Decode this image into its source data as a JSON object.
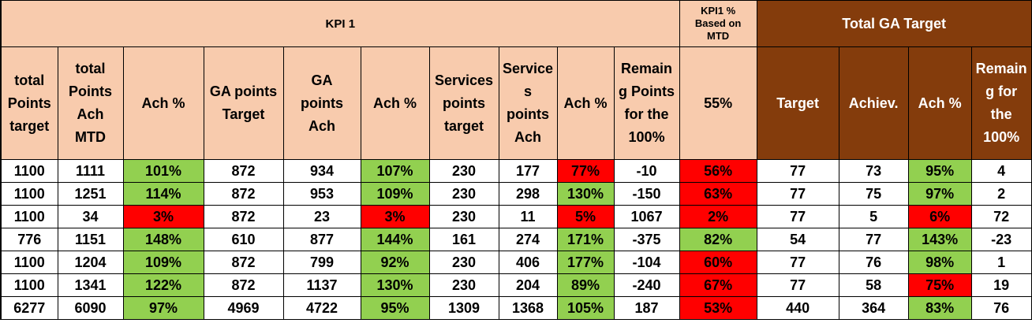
{
  "header": {
    "kpi1": "KPI 1",
    "kpi1_pct_lines": [
      "KPI1 %",
      "Based on",
      "MTD"
    ],
    "total_ga_target": "Total GA Target"
  },
  "columns": [
    {
      "lines": [
        "total",
        "Points",
        "target"
      ]
    },
    {
      "lines": [
        "total",
        "Points",
        "Ach",
        "MTD"
      ]
    },
    {
      "lines": [
        "Ach %"
      ]
    },
    {
      "lines": [
        "GA points",
        "Target"
      ]
    },
    {
      "lines": [
        "GA",
        "points",
        "Ach"
      ]
    },
    {
      "lines": [
        "Ach %"
      ]
    },
    {
      "lines": [
        "Services",
        "points",
        "target"
      ]
    },
    {
      "lines": [
        "Service",
        "s",
        "points",
        "Ach"
      ]
    },
    {
      "lines": [
        "Ach %"
      ]
    },
    {
      "lines": [
        "Remain",
        "g Points",
        "for the",
        "100%"
      ]
    },
    {
      "lines": [
        "55%"
      ]
    },
    {
      "lines": [
        "Target"
      ]
    },
    {
      "lines": [
        "Achiev."
      ]
    },
    {
      "lines": [
        "Ach %"
      ]
    },
    {
      "lines": [
        "Remain",
        "g for",
        "the",
        "100%"
      ]
    }
  ],
  "rows": [
    {
      "cells": [
        "1100",
        "1111",
        "101%",
        "872",
        "934",
        "107%",
        "230",
        "177",
        "77%",
        "-10",
        "56%",
        "77",
        "73",
        "95%",
        "4"
      ],
      "status": [
        "w",
        "w",
        "g",
        "w",
        "w",
        "g",
        "w",
        "w",
        "r",
        "w",
        "r",
        "b",
        "b",
        "g",
        "b"
      ]
    },
    {
      "cells": [
        "1100",
        "1251",
        "114%",
        "872",
        "953",
        "109%",
        "230",
        "298",
        "130%",
        "-150",
        "63%",
        "77",
        "75",
        "97%",
        "2"
      ],
      "status": [
        "w",
        "w",
        "g",
        "w",
        "w",
        "g",
        "w",
        "w",
        "g",
        "w",
        "r",
        "b",
        "b",
        "g",
        "b"
      ]
    },
    {
      "cells": [
        "1100",
        "34",
        "3%",
        "872",
        "23",
        "3%",
        "230",
        "11",
        "5%",
        "1067",
        "2%",
        "77",
        "5",
        "6%",
        "72"
      ],
      "status": [
        "w",
        "w",
        "r",
        "w",
        "w",
        "r",
        "w",
        "w",
        "r",
        "w",
        "r",
        "b",
        "b",
        "r",
        "b"
      ]
    },
    {
      "cells": [
        "776",
        "1151",
        "148%",
        "610",
        "877",
        "144%",
        "161",
        "274",
        "171%",
        "-375",
        "82%",
        "54",
        "77",
        "143%",
        "-23"
      ],
      "status": [
        "w",
        "w",
        "g",
        "w",
        "w",
        "g",
        "w",
        "w",
        "g",
        "w",
        "g",
        "b",
        "b",
        "g",
        "b"
      ]
    },
    {
      "cells": [
        "1100",
        "1204",
        "109%",
        "872",
        "799",
        "92%",
        "230",
        "406",
        "177%",
        "-104",
        "60%",
        "77",
        "76",
        "98%",
        "1"
      ],
      "status": [
        "w",
        "w",
        "g",
        "w",
        "w",
        "g",
        "w",
        "w",
        "g",
        "w",
        "r",
        "b",
        "b",
        "g",
        "b"
      ]
    },
    {
      "cells": [
        "1100",
        "1341",
        "122%",
        "872",
        "1137",
        "130%",
        "230",
        "204",
        "89%",
        "-240",
        "67%",
        "77",
        "58",
        "75%",
        "19"
      ],
      "status": [
        "w",
        "w",
        "g",
        "w",
        "w",
        "g",
        "w",
        "w",
        "g",
        "w",
        "r",
        "b",
        "b",
        "r",
        "b"
      ]
    },
    {
      "cells": [
        "6277",
        "6090",
        "97%",
        "4969",
        "4722",
        "95%",
        "1309",
        "1368",
        "105%",
        "187",
        "53%",
        "440",
        "364",
        "83%",
        "76"
      ],
      "status": [
        "w",
        "w",
        "g",
        "w",
        "w",
        "g",
        "w",
        "w",
        "g",
        "w",
        "r",
        "b",
        "b",
        "g",
        "b"
      ]
    }
  ],
  "colors": {
    "header_peach": "#f8cbad",
    "header_brown": "#843c0c",
    "good": "#92d050",
    "bad": "#ff0000"
  }
}
